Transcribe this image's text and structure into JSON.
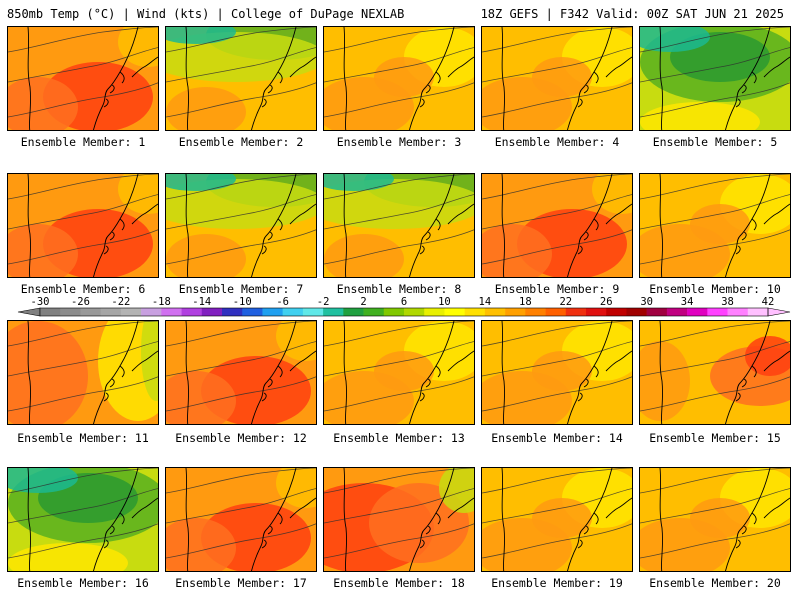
{
  "header": {
    "left": "850mb Temp (°C) | Wind (kts) | College of DuPage NEXLAB",
    "right": "18Z GEFS | F342 Valid: 00Z SAT JUN 21 2025"
  },
  "members": [
    {
      "label": "Ensemble Member: 1",
      "temp_class": "warm"
    },
    {
      "label": "Ensemble Member: 2",
      "temp_class": "cool-north"
    },
    {
      "label": "Ensemble Member: 3",
      "temp_class": "mild"
    },
    {
      "label": "Ensemble Member: 4",
      "temp_class": "mild"
    },
    {
      "label": "Ensemble Member: 5",
      "temp_class": "cool"
    },
    {
      "label": "Ensemble Member: 6",
      "temp_class": "warm"
    },
    {
      "label": "Ensemble Member: 7",
      "temp_class": "cool-north"
    },
    {
      "label": "Ensemble Member: 8",
      "temp_class": "cool-north"
    },
    {
      "label": "Ensemble Member: 9",
      "temp_class": "warm"
    },
    {
      "label": "Ensemble Member: 10",
      "temp_class": "mild"
    },
    {
      "label": "Ensemble Member: 11",
      "temp_class": "warm-west"
    },
    {
      "label": "Ensemble Member: 12",
      "temp_class": "warm"
    },
    {
      "label": "Ensemble Member: 13",
      "temp_class": "mild"
    },
    {
      "label": "Ensemble Member: 14",
      "temp_class": "mild"
    },
    {
      "label": "Ensemble Member: 15",
      "temp_class": "warm-east"
    },
    {
      "label": "Ensemble Member: 16",
      "temp_class": "cool"
    },
    {
      "label": "Ensemble Member: 17",
      "temp_class": "warm"
    },
    {
      "label": "Ensemble Member: 18",
      "temp_class": "hot"
    },
    {
      "label": "Ensemble Member: 19",
      "temp_class": "mild"
    },
    {
      "label": "Ensemble Member: 20",
      "temp_class": "mild"
    }
  ],
  "colorbar": {
    "ticks": [
      "-30",
      "-26",
      "-22",
      "-18",
      "-14",
      "-10",
      "-6",
      "-2",
      "2",
      "6",
      "10",
      "14",
      "18",
      "22",
      "26",
      "30",
      "34",
      "38",
      "42"
    ],
    "colors": [
      "#808080",
      "#8c8c8c",
      "#999999",
      "#a6a6a6",
      "#b3b3b3",
      "#c8a0e0",
      "#d070f0",
      "#b040e0",
      "#8020c0",
      "#3030c0",
      "#2060e0",
      "#20a0f0",
      "#40d0f0",
      "#60e8e8",
      "#20c0a0",
      "#20a040",
      "#40b020",
      "#80c800",
      "#b0d800",
      "#e8f000",
      "#ffff00",
      "#ffe000",
      "#ffc000",
      "#ffa000",
      "#ff8000",
      "#ff6000",
      "#f03010",
      "#e01010",
      "#c00000",
      "#a00000",
      "#a00040",
      "#c00080",
      "#e000c0",
      "#ff40ff",
      "#ff80ff",
      "#ffc0ff"
    ]
  },
  "palette": {
    "hot": "#ff4010",
    "warm": "#ff7020",
    "orange": "#ff9a10",
    "amber": "#ffbe00",
    "yellow": "#ffe600",
    "lime": "#c8dc10",
    "green": "#58b020",
    "dkgreen": "#2c9a30",
    "teal": "#1cb890",
    "contour": "#303030",
    "coast": "#000000"
  }
}
